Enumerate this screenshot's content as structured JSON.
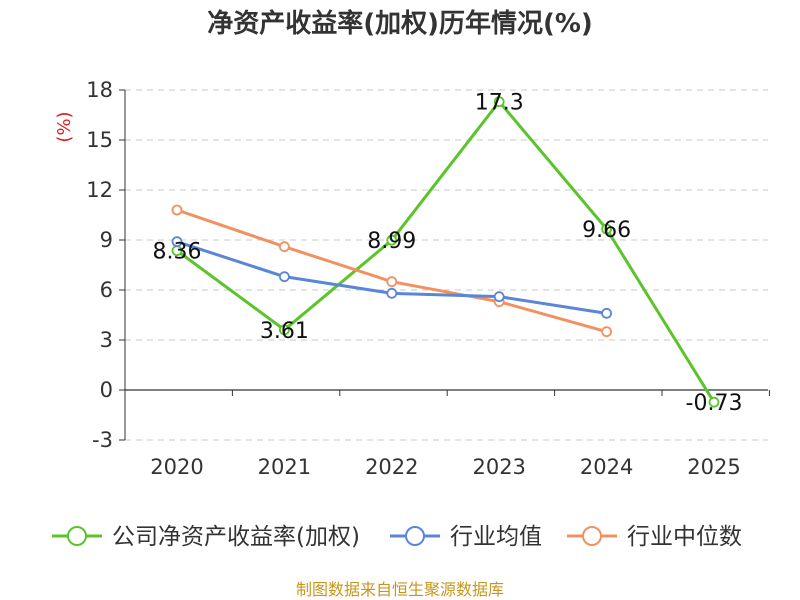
{
  "chart_data": {
    "type": "line",
    "title": "净资产收益率(加权)历年情况(%)",
    "ylabel": "(%)",
    "categories": [
      "2020",
      "2021",
      "2022",
      "2023",
      "2024",
      "2025"
    ],
    "ylim": [
      -3,
      18
    ],
    "yticks": [
      18,
      15,
      12,
      9,
      6,
      3,
      0,
      -3
    ],
    "grid": true,
    "legend_position": "bottom",
    "series": [
      {
        "name": "公司净资产收益率(加权)",
        "color": "#5ac42a",
        "values": [
          8.36,
          3.61,
          8.99,
          17.3,
          9.66,
          -0.73
        ],
        "labels": [
          "8.36",
          "3.61",
          "8.99",
          "17.3",
          "9.66",
          "-0.73"
        ]
      },
      {
        "name": "行业均值",
        "color": "#5b86d8",
        "values": [
          8.9,
          6.8,
          5.8,
          5.6,
          4.6,
          null
        ]
      },
      {
        "name": "行业中位数",
        "color": "#f29160",
        "values": [
          10.8,
          8.6,
          6.5,
          5.3,
          3.5,
          null
        ]
      }
    ]
  },
  "source": "制图数据来自恒生聚源数据库"
}
